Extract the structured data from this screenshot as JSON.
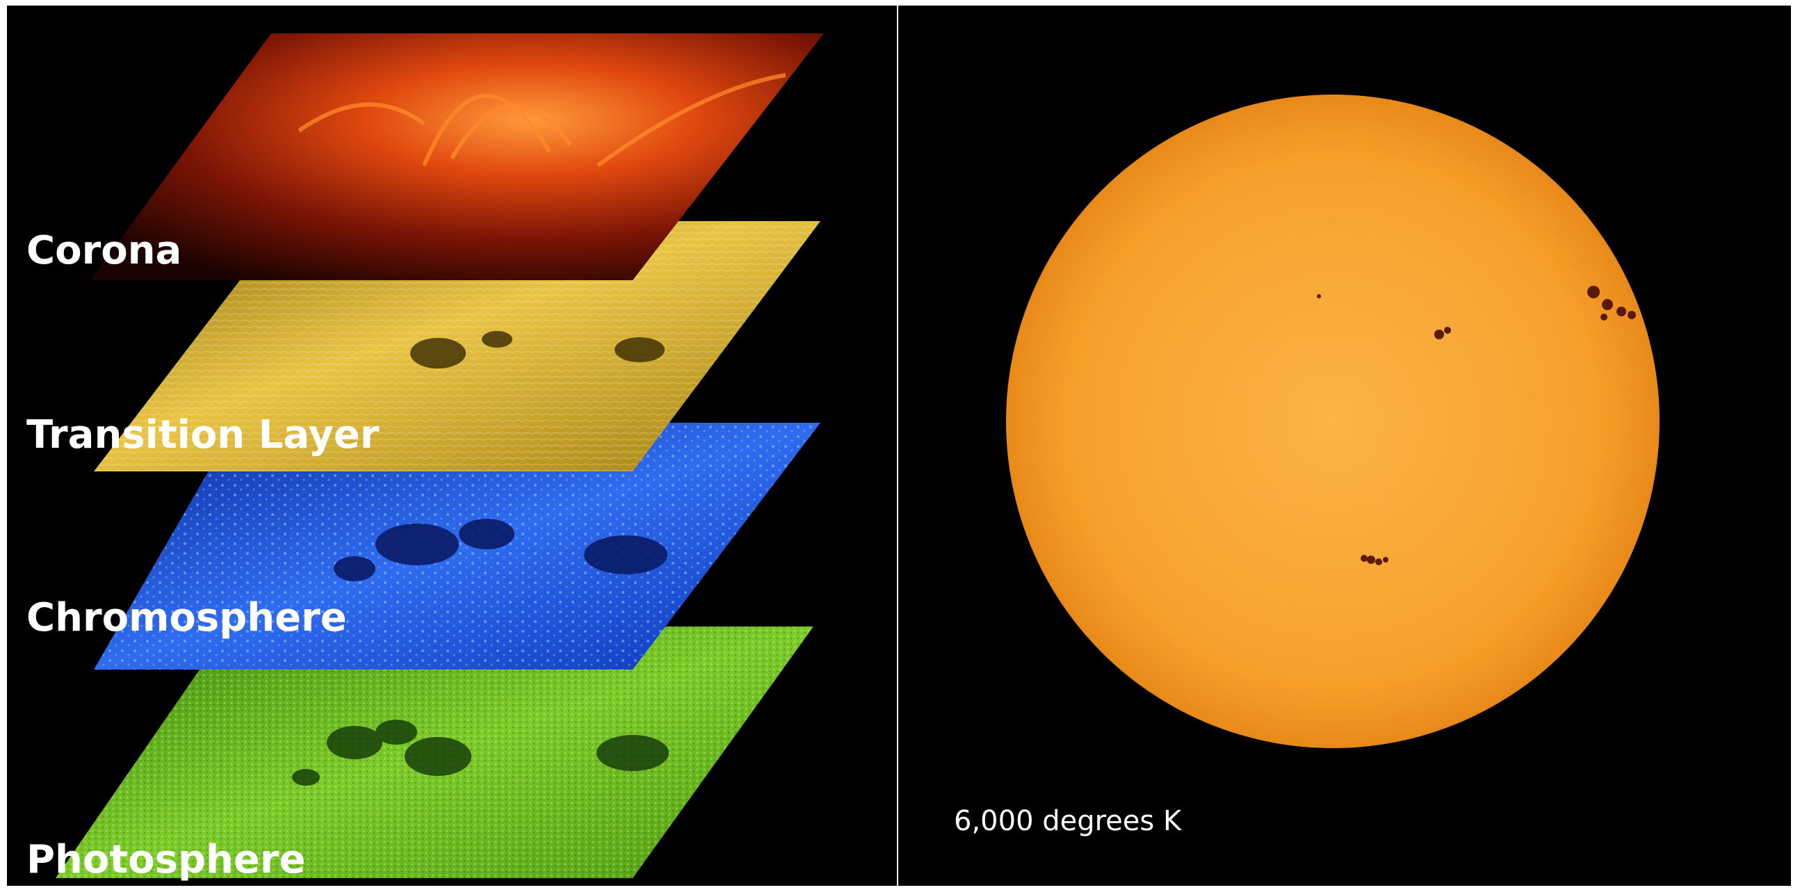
{
  "layers": [
    {
      "label": "Corona",
      "color": "#c8300a"
    },
    {
      "label": "Transition Layer",
      "color": "#c9a21c"
    },
    {
      "label": "Chromosphere",
      "color": "#1f4fd4"
    },
    {
      "label": "Photosphere",
      "color": "#5fae1c"
    }
  ],
  "sun": {
    "temperature_label": "6,000 degrees K",
    "color": "#f6a02c",
    "spot_color": "#5a1a08"
  },
  "background_color": "#000000"
}
